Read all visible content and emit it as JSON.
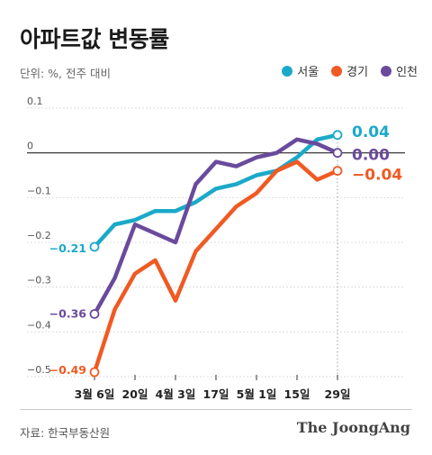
{
  "header": {
    "title": "아파트값 변동률",
    "subtitle": "단위: %, 전주 대비"
  },
  "footer": {
    "source": "자료: 한국부동산원",
    "brand": "The JoongAng"
  },
  "colors": {
    "seoul": "#1ba9c9",
    "gyeonggi": "#f05a23",
    "incheon": "#6a4a9c"
  },
  "chart_data": {
    "type": "line",
    "title": "아파트값 변동률",
    "ylim": [
      -0.5,
      0.1
    ],
    "yticks": [
      0.1,
      0,
      -0.1,
      -0.2,
      -0.3,
      -0.4,
      -0.5
    ],
    "ytick_labels": [
      "0.1",
      "0",
      "−0.1",
      "−0.2",
      "−0.3",
      "−0.4",
      "−0.5"
    ],
    "x_tick_labels": [
      {
        "index": 0,
        "label": "3월 6일"
      },
      {
        "index": 2,
        "label": "20일"
      },
      {
        "index": 4,
        "label": "4월 3일"
      },
      {
        "index": 6,
        "label": "17일"
      },
      {
        "index": 8,
        "label": "5월 1일"
      },
      {
        "index": 10,
        "label": "15일"
      },
      {
        "index": 12,
        "label": "29일"
      }
    ],
    "legend_position": "top-right",
    "series": [
      {
        "key": "seoul",
        "name": "서울",
        "values": [
          -0.21,
          -0.16,
          -0.15,
          -0.13,
          -0.13,
          -0.11,
          -0.08,
          -0.07,
          -0.05,
          -0.04,
          -0.01,
          0.03,
          0.04
        ],
        "start_label": "−0.21",
        "end_label": "0.04"
      },
      {
        "key": "gyeonggi",
        "name": "경기",
        "values": [
          -0.49,
          -0.35,
          -0.27,
          -0.24,
          -0.33,
          -0.22,
          -0.17,
          -0.12,
          -0.09,
          -0.04,
          -0.02,
          -0.06,
          -0.04
        ],
        "start_label": "−0.49",
        "end_label": "−0.04"
      },
      {
        "key": "incheon",
        "name": "인천",
        "values": [
          -0.36,
          -0.28,
          -0.16,
          -0.18,
          -0.2,
          -0.07,
          -0.02,
          -0.03,
          -0.01,
          0.0,
          0.03,
          0.02,
          0.0
        ],
        "start_label": "−0.36",
        "end_label": "0.00"
      }
    ]
  }
}
